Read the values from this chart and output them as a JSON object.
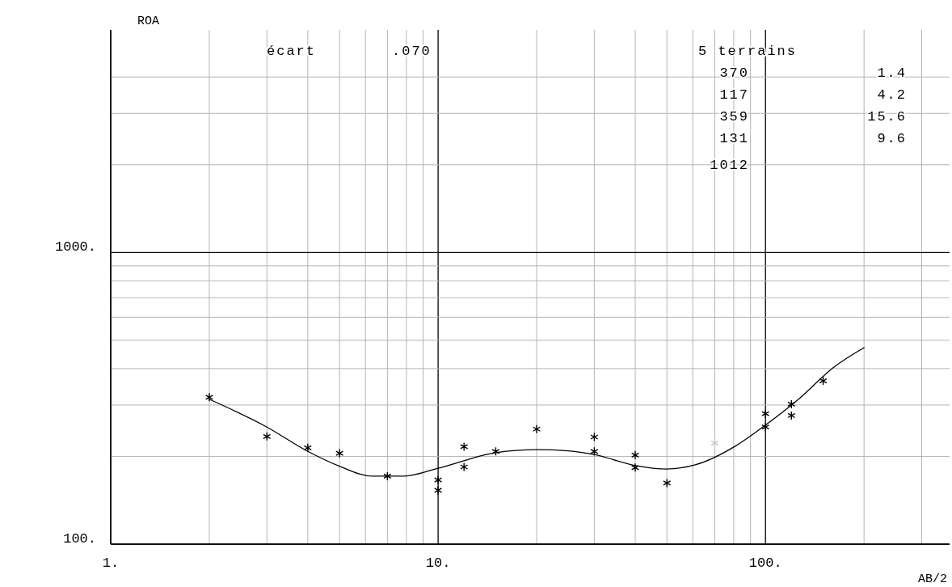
{
  "chart_data": {
    "type": "scatter",
    "xlabel": "AB/2",
    "ylabel": "ROA",
    "log": "xy",
    "grid": true,
    "xlim": [
      1,
      365
    ],
    "ylim": [
      100,
      5800
    ],
    "xticks": [
      {
        "value": 1,
        "label": "1."
      },
      {
        "value": 2,
        "label": null
      },
      {
        "value": 3,
        "label": null
      },
      {
        "value": 4,
        "label": null
      },
      {
        "value": 5,
        "label": null
      },
      {
        "value": 6,
        "label": null
      },
      {
        "value": 7,
        "label": null
      },
      {
        "value": 8,
        "label": null
      },
      {
        "value": 9,
        "label": null
      },
      {
        "value": 10,
        "label": "10."
      },
      {
        "value": 20,
        "label": null
      },
      {
        "value": 30,
        "label": null
      },
      {
        "value": 40,
        "label": null
      },
      {
        "value": 50,
        "label": null
      },
      {
        "value": 60,
        "label": null
      },
      {
        "value": 70,
        "label": null
      },
      {
        "value": 80,
        "label": null
      },
      {
        "value": 90,
        "label": null
      },
      {
        "value": 100,
        "label": "100."
      },
      {
        "value": 200,
        "label": null
      },
      {
        "value": 300,
        "label": null
      }
    ],
    "yticks": [
      {
        "value": 100,
        "label": "100."
      },
      {
        "value": 200,
        "label": null
      },
      {
        "value": 300,
        "label": null
      },
      {
        "value": 400,
        "label": null
      },
      {
        "value": 500,
        "label": null
      },
      {
        "value": 600,
        "label": null
      },
      {
        "value": 700,
        "label": null
      },
      {
        "value": 800,
        "label": null
      },
      {
        "value": 900,
        "label": null
      },
      {
        "value": 1000,
        "label": "1000."
      },
      {
        "value": 2000,
        "label": null
      },
      {
        "value": 3000,
        "label": null
      },
      {
        "value": 4000,
        "label": null
      }
    ],
    "annotations": [
      "écart",
      ".070",
      "5 terrains",
      "370",
      "1.4",
      "117",
      "4.2",
      "359",
      "15.6",
      "131",
      "9.6",
      "1012"
    ],
    "series": [
      {
        "color": "#000000",
        "marker": "cross",
        "x": [
          2,
          3,
          4,
          5,
          7,
          10,
          10,
          12,
          12,
          15,
          20,
          30,
          30,
          40,
          40,
          50,
          100,
          100,
          120,
          120,
          150
        ],
        "values": [
          319,
          234,
          214,
          205,
          171,
          166,
          153,
          216,
          184,
          208,
          248,
          233,
          208,
          202,
          183,
          162,
          280,
          252,
          302,
          276,
          363
        ]
      },
      {
        "color": "#c8c8c8",
        "marker": "cross",
        "x": [
          70
        ],
        "values": [
          222
        ]
      },
      {
        "type": "line",
        "color": "#000000",
        "marker": "none",
        "line_style": "solid",
        "x": [
          2,
          3,
          4,
          5,
          6.3,
          7.8,
          10,
          15,
          20,
          25,
          30,
          40,
          50,
          61,
          81,
          100,
          127,
          161,
          200
        ],
        "values": [
          314,
          252,
          208,
          185,
          171,
          171,
          182,
          206,
          211,
          209,
          203,
          186,
          181,
          187,
          217,
          256,
          316,
          403,
          472
        ]
      }
    ]
  }
}
